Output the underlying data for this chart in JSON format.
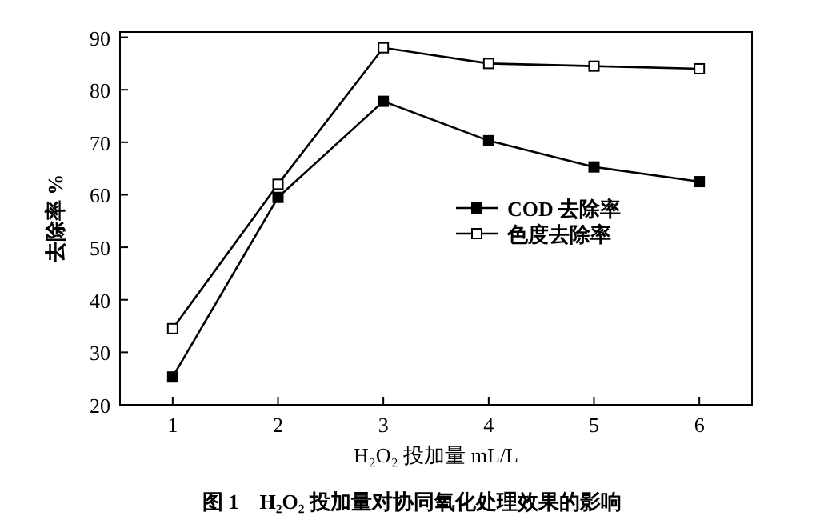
{
  "chart_data": {
    "type": "line",
    "xlabel": "H₂O₂ 投加量 mL/L",
    "ylabel": "去除率 %",
    "annotations": [
      "图 1　H₂O₂ 投加量对协同氧化处理效果的影响"
    ],
    "x": [
      1,
      2,
      3,
      4,
      5,
      6
    ],
    "series": [
      {
        "name": "COD 去除率",
        "color": "#000000",
        "values": [
          25.3,
          59.5,
          77.8,
          70.3,
          65.3,
          62.5
        ]
      },
      {
        "name": "色度去除率",
        "color": "#000000",
        "values": [
          34.5,
          62,
          88,
          85,
          84.5,
          84
        ]
      }
    ],
    "xlim": [
      0.5,
      6.5
    ],
    "xticks": [
      1,
      2,
      3,
      4,
      5,
      6
    ],
    "ylim": [
      20,
      91
    ],
    "yticks": [
      20,
      30,
      40,
      50,
      60,
      70,
      80,
      90
    ],
    "marker": "square",
    "line_style": "solid",
    "grid": false,
    "legend": "right"
  }
}
